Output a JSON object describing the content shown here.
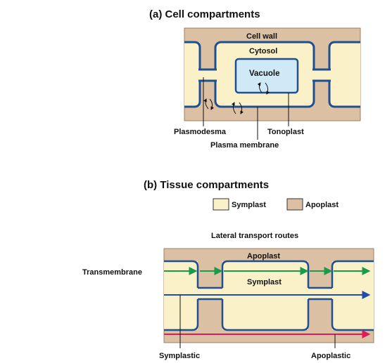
{
  "panel_a": {
    "title": "(a) Cell compartments",
    "labels": {
      "cell_wall": "Cell wall",
      "cytosol": "Cytosol",
      "vacuole": "Vacuole",
      "plasmodesma": "Plasmodesma",
      "tonoplast": "Tonoplast",
      "plasma_membrane": "Plasma membrane"
    }
  },
  "panel_b": {
    "title": "(b) Tissue  compartments",
    "legend": {
      "symplast": "Symplast",
      "apoplast": "Apoplast"
    },
    "subtitle": "Lateral transport routes",
    "labels": {
      "apoplast": "Apoplast",
      "symplast": "Symplast",
      "transmembrane": "Transmembrane",
      "symplastic": "Symplastic",
      "apoplastic": "Apoplastic"
    },
    "route_colors": {
      "transmembrane": "#1a9a4a",
      "symplastic": "#1f4fa8",
      "apoplastic": "#e01b5a"
    }
  },
  "colors": {
    "wall": "#dcc0a3",
    "cytoplasm": "#fbf1c8",
    "vacuole": "#cfe9f7",
    "membrane": "#1f4f8f"
  }
}
